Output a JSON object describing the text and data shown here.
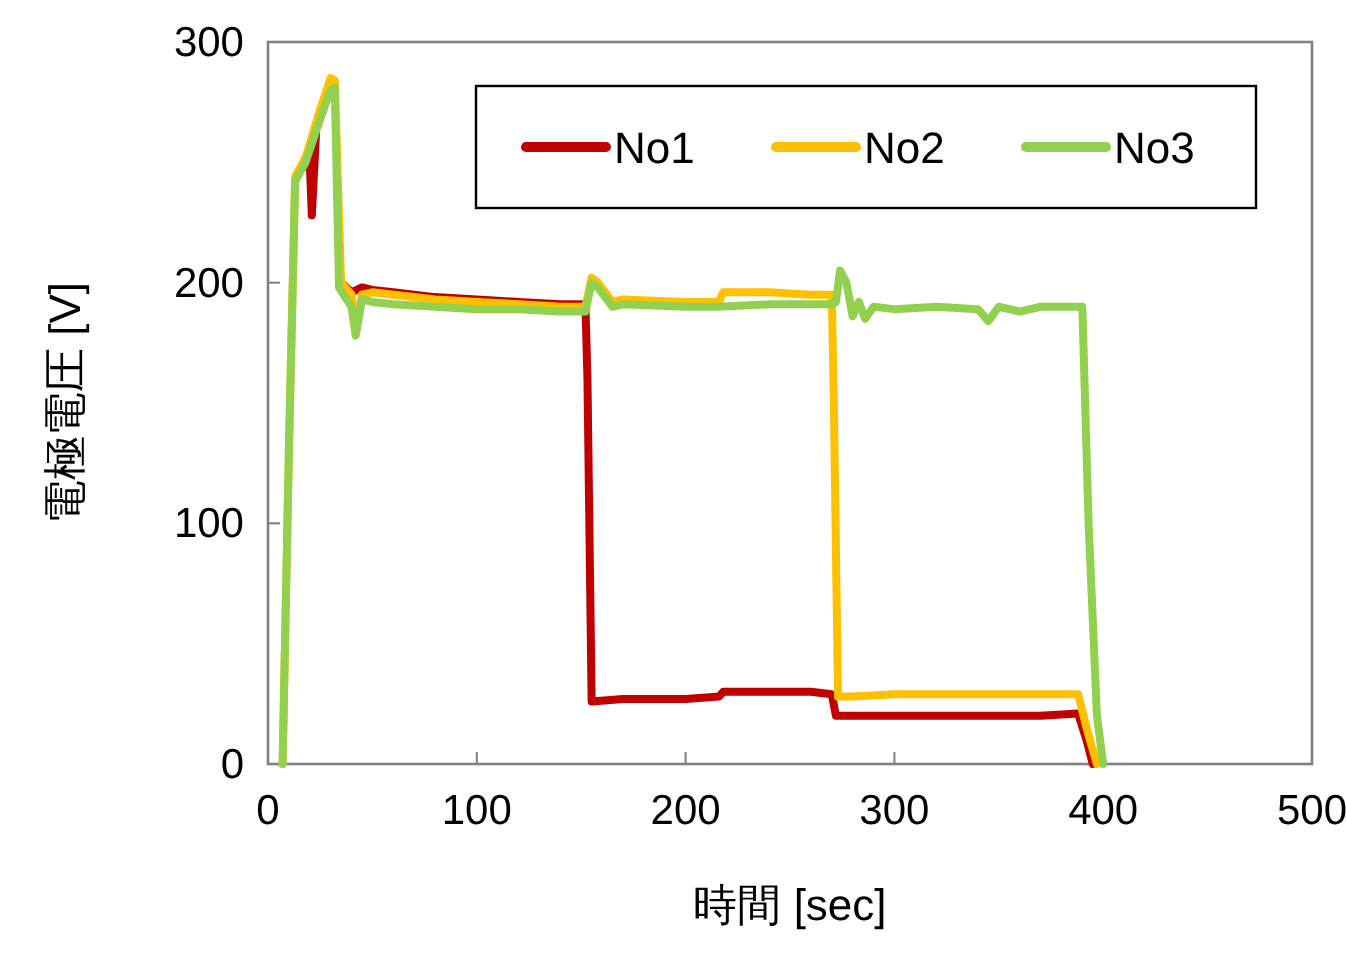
{
  "chart_data": {
    "type": "line",
    "xlabel": "時間 [sec]",
    "ylabel": "電極電圧 [V]",
    "xlim": [
      0,
      500
    ],
    "ylim": [
      0,
      300
    ],
    "xticks": [
      0,
      100,
      200,
      300,
      400,
      500
    ],
    "yticks": [
      0,
      100,
      200,
      300
    ],
    "grid": false,
    "legend": "top right",
    "marker": "none",
    "line_style": "solid",
    "series": [
      {
        "name": "No1",
        "color": "#c00000",
        "x": [
          17,
          20,
          21,
          23,
          27,
          30,
          32,
          35,
          40,
          45,
          50,
          60,
          80,
          100,
          120,
          140,
          152,
          153,
          155,
          170,
          200,
          216,
          218,
          240,
          260,
          270,
          272,
          280,
          300,
          340,
          370,
          388,
          392,
          395
        ],
        "values": [
          248,
          250,
          228,
          262,
          null,
          null,
          null,
          200,
          196,
          198,
          197,
          196,
          194,
          193,
          192,
          191,
          191,
          160,
          26,
          27,
          27,
          28,
          30,
          30,
          30,
          29,
          20,
          20,
          20,
          20,
          20,
          21,
          10,
          0
        ]
      },
      {
        "name": "No2",
        "color": "#ffc000",
        "x": [
          7,
          10,
          13,
          18,
          25,
          30,
          32,
          35,
          40,
          42,
          45,
          50,
          60,
          80,
          100,
          120,
          140,
          152,
          155,
          158,
          165,
          170,
          200,
          216,
          218,
          240,
          260,
          270,
          271,
          273,
          280,
          300,
          340,
          370,
          388,
          392,
          397
        ],
        "values": [
          0,
          130,
          244,
          252,
          272,
          285,
          284,
          200,
          195,
          180,
          195,
          196,
          195,
          193,
          192,
          191,
          190,
          190,
          202,
          200,
          192,
          193,
          192,
          192,
          196,
          196,
          195,
          195,
          150,
          28,
          28,
          29,
          29,
          29,
          29,
          15,
          0
        ]
      },
      {
        "name": "No3",
        "color": "#92d050",
        "x": [
          7,
          10,
          13,
          18,
          25,
          30,
          32,
          34,
          40,
          42,
          45,
          50,
          60,
          80,
          100,
          120,
          140,
          152,
          155,
          158,
          165,
          170,
          200,
          216,
          240,
          260,
          270,
          272,
          274,
          277,
          280,
          283,
          286,
          290,
          300,
          320,
          340,
          345,
          350,
          360,
          370,
          380,
          390,
          393,
          397,
          400
        ],
        "values": [
          0,
          130,
          242,
          250,
          268,
          280,
          281,
          198,
          190,
          178,
          193,
          192,
          191,
          190,
          189,
          189,
          188,
          188,
          200,
          198,
          190,
          191,
          190,
          190,
          191,
          191,
          191,
          192,
          205,
          200,
          186,
          192,
          185,
          190,
          189,
          190,
          189,
          184,
          190,
          188,
          190,
          190,
          190,
          100,
          20,
          0
        ]
      }
    ]
  }
}
